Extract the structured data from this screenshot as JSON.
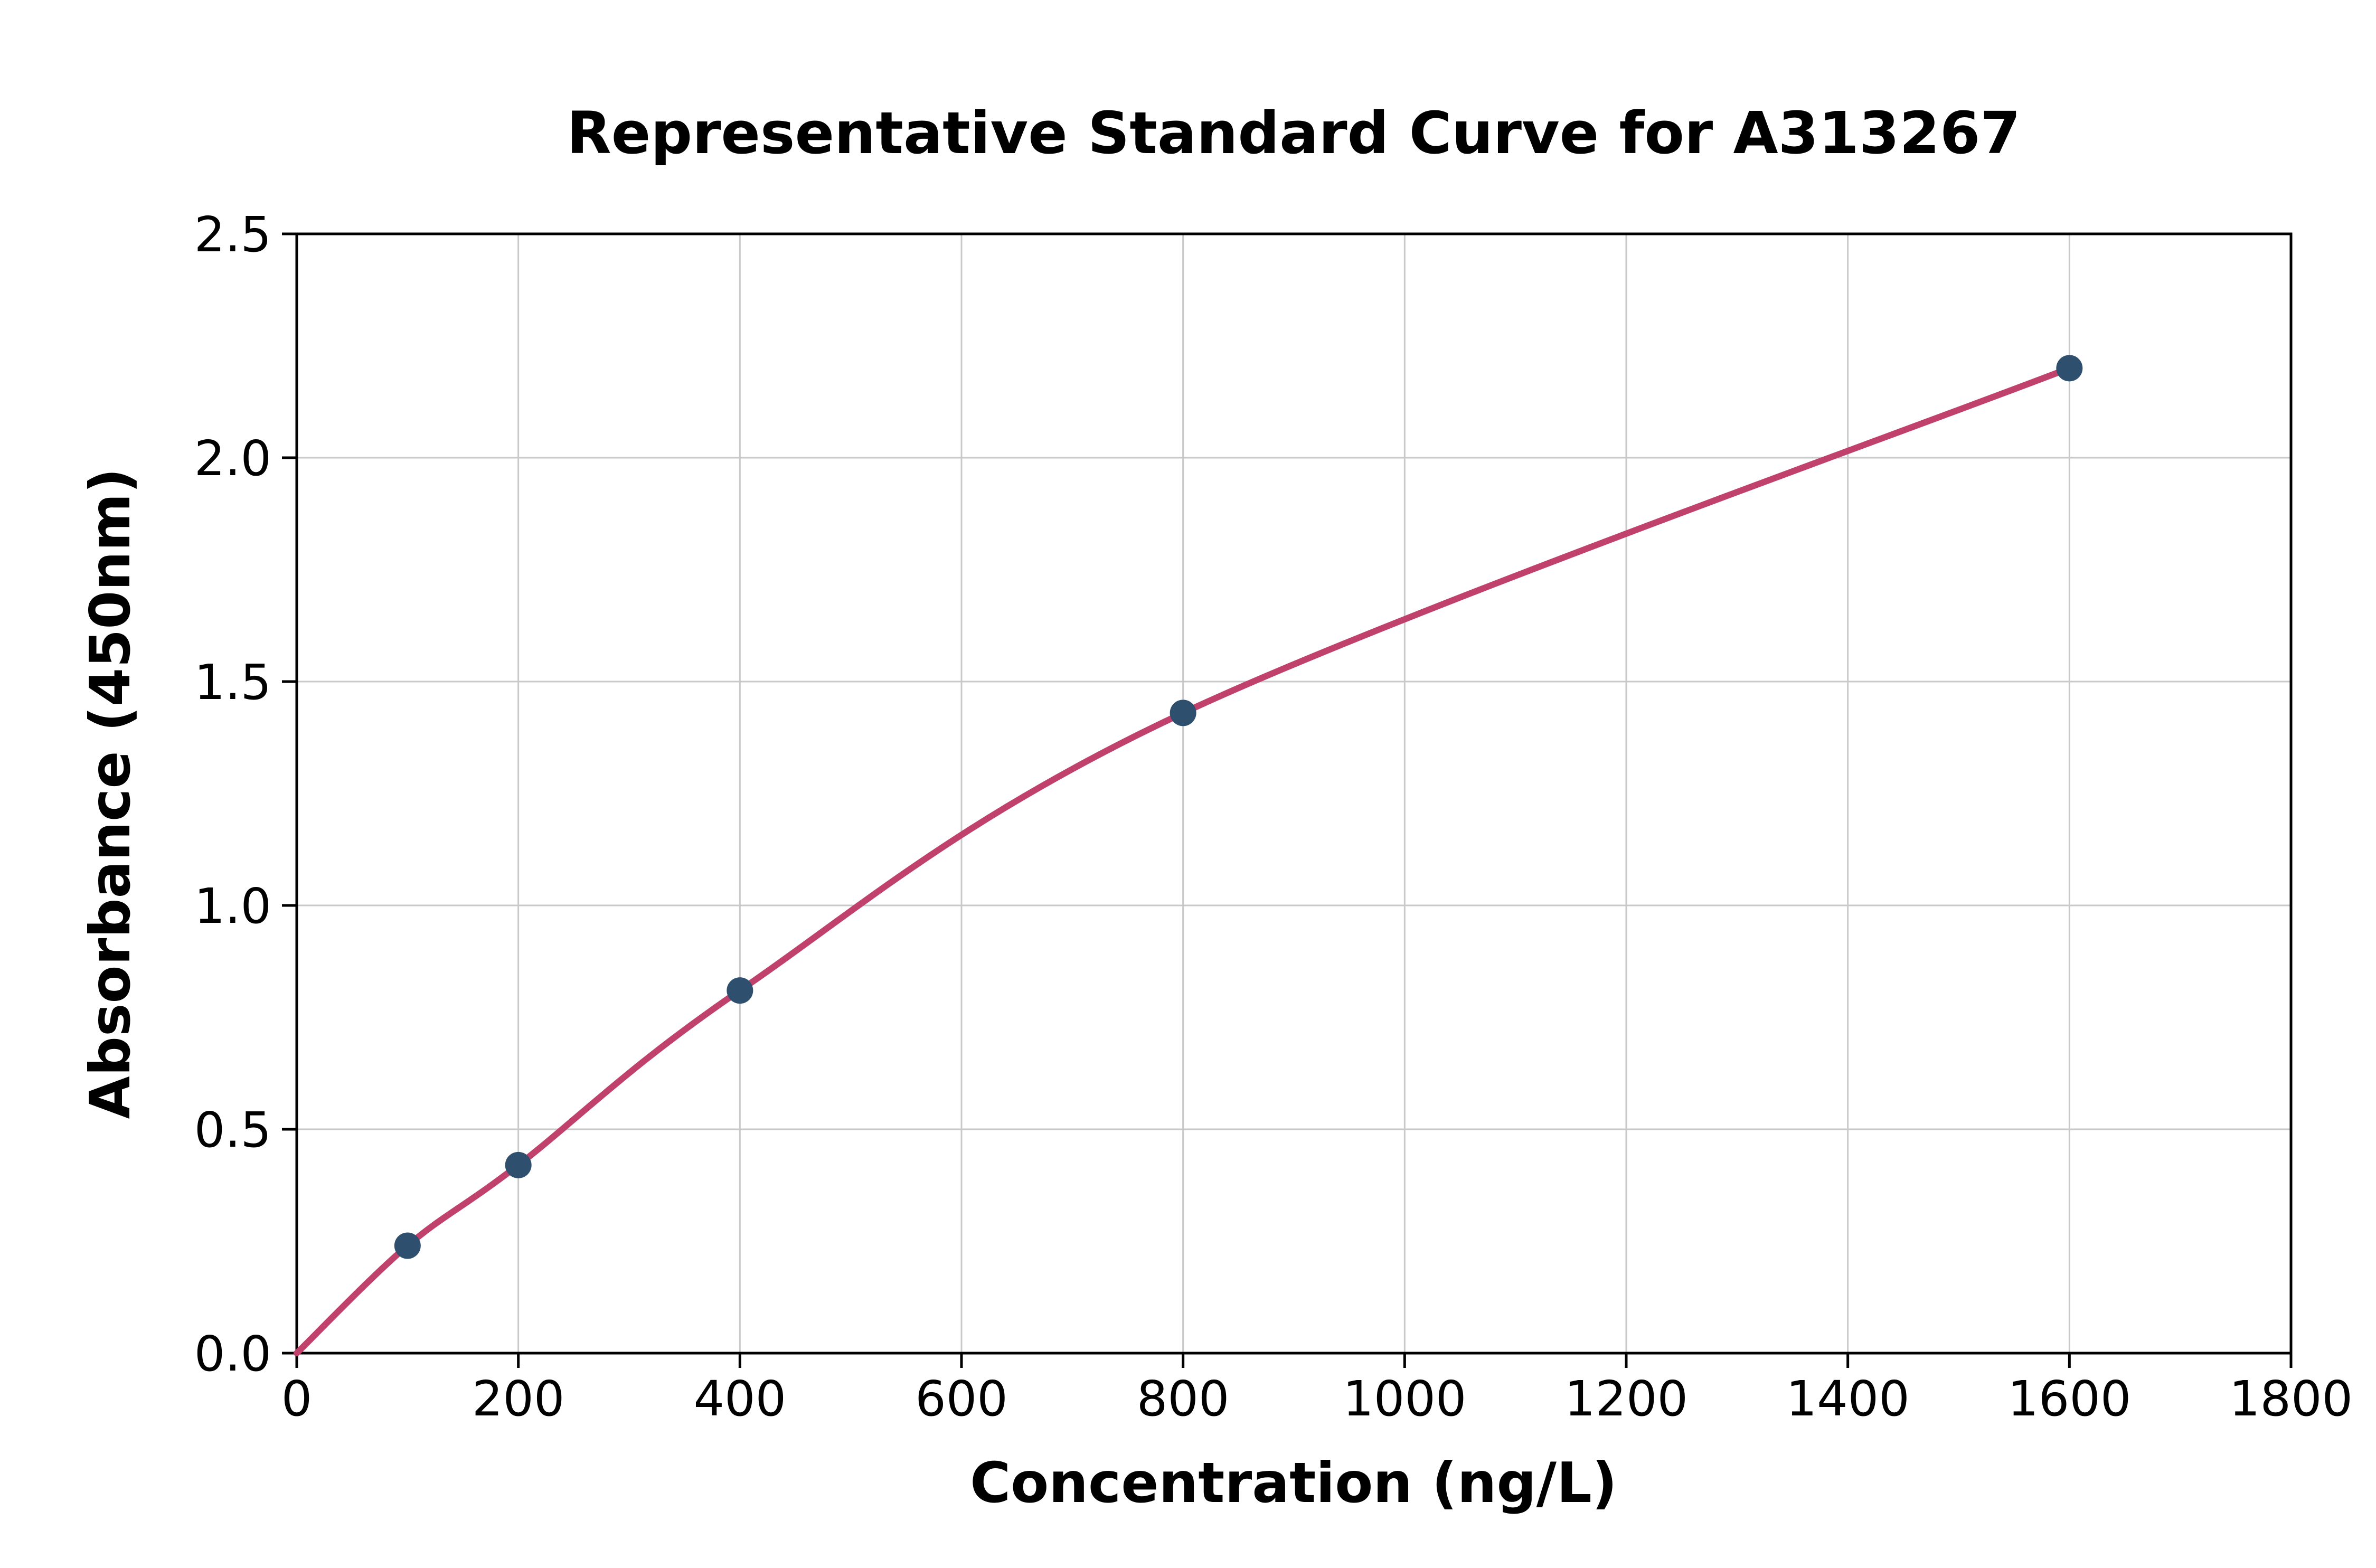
{
  "chart_data": {
    "type": "scatter",
    "title": "Representative Standard Curve for A313267",
    "xlabel": "Concentration (ng/L)",
    "ylabel": "Absorbance (450nm)",
    "xlim": [
      0,
      1800
    ],
    "ylim": [
      0.0,
      2.5
    ],
    "x_ticks": [
      0,
      200,
      400,
      600,
      800,
      1000,
      1200,
      1400,
      1600,
      1800
    ],
    "y_ticks": [
      0.0,
      0.5,
      1.0,
      1.5,
      2.0,
      2.5
    ],
    "grid": true,
    "legend": "none",
    "points": [
      {
        "x": 100,
        "y": 0.24
      },
      {
        "x": 200,
        "y": 0.42
      },
      {
        "x": 400,
        "y": 0.81
      },
      {
        "x": 800,
        "y": 1.43
      },
      {
        "x": 1600,
        "y": 2.2
      }
    ],
    "curve_points": [
      {
        "x": 0,
        "y": 0.0
      },
      {
        "x": 100,
        "y": 0.24
      },
      {
        "x": 200,
        "y": 0.42
      },
      {
        "x": 400,
        "y": 0.81
      },
      {
        "x": 800,
        "y": 1.43
      },
      {
        "x": 1600,
        "y": 2.2
      }
    ],
    "colors": {
      "curve": "#c0426c",
      "point": "#2e4f6e",
      "grid": "#c9c9c9",
      "axis": "#000000",
      "background": "#ffffff"
    }
  }
}
